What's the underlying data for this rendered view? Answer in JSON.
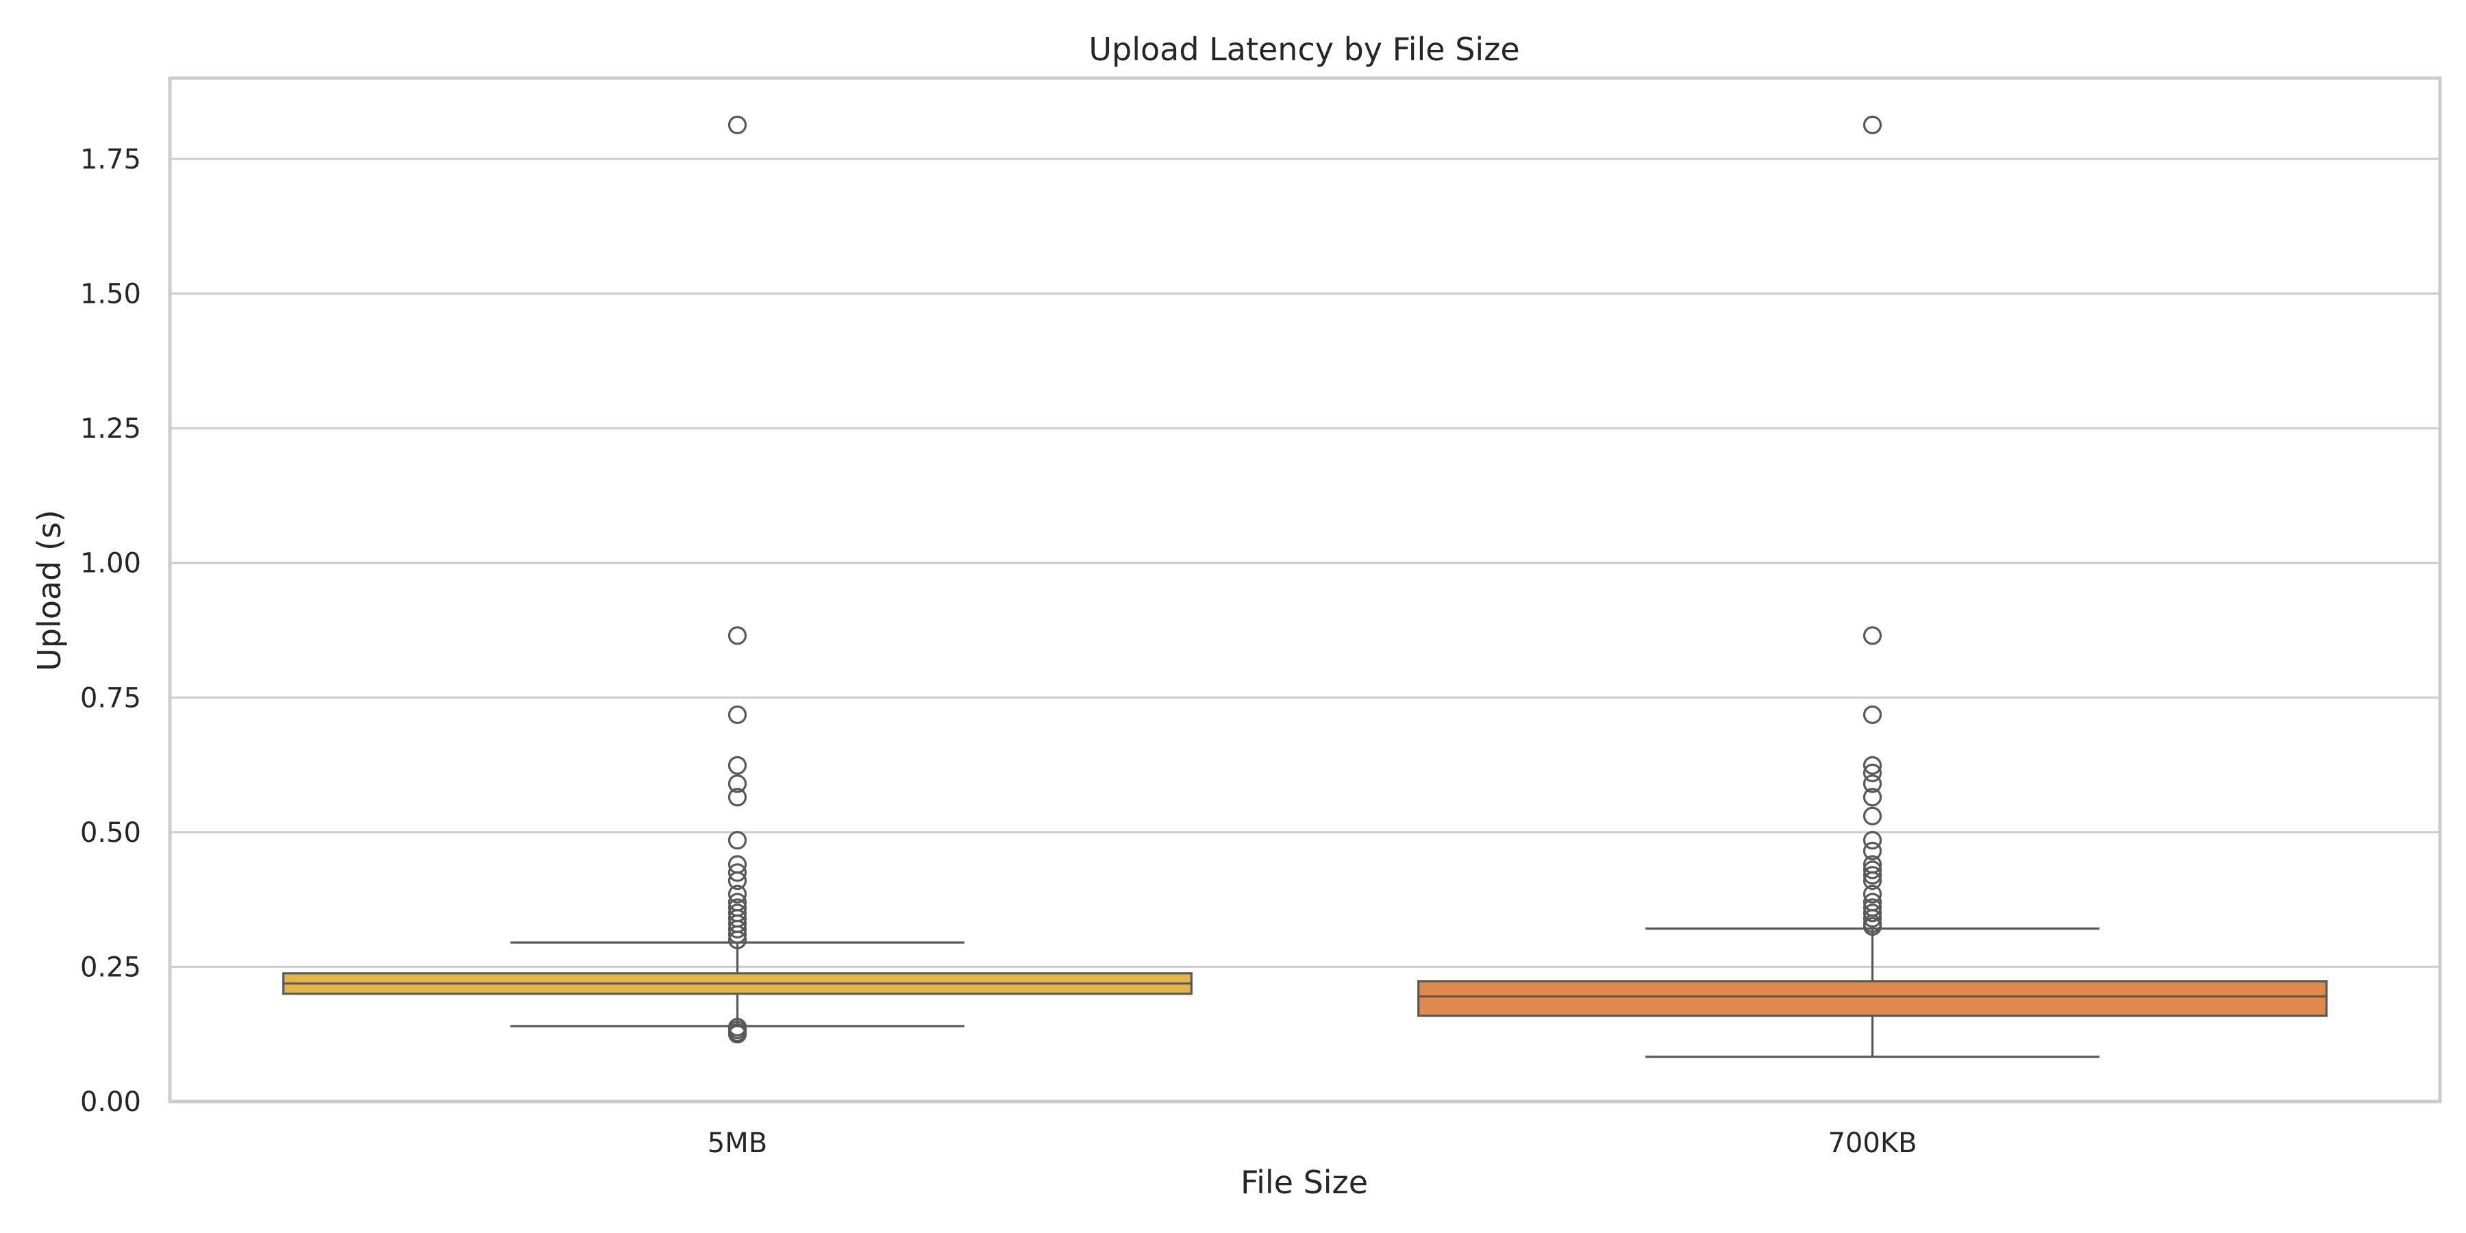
{
  "chart_data": {
    "type": "box",
    "title": "Upload Latency by File Size",
    "xlabel": "File Size",
    "ylabel": "Upload (s)",
    "ylim": [
      0,
      1.9
    ],
    "y_ticks": [
      0.0,
      0.25,
      0.5,
      0.75,
      1.0,
      1.25,
      1.5,
      1.75
    ],
    "y_tick_labels": [
      "0.00",
      "0.25",
      "0.50",
      "0.75",
      "1.00",
      "1.25",
      "1.50",
      "1.75"
    ],
    "grid": true,
    "legend": "none",
    "categories": [
      "5MB",
      "700KB"
    ],
    "boxes": [
      {
        "category": "5MB",
        "color": "#e6b54a",
        "whisker_low": 0.14,
        "q1": 0.2,
        "median": 0.219,
        "q3": 0.238,
        "whisker_high": 0.295,
        "outliers": [
          1.813,
          0.865,
          0.718,
          0.624,
          0.59,
          0.565,
          0.485,
          0.44,
          0.425,
          0.41,
          0.385,
          0.37,
          0.36,
          0.35,
          0.34,
          0.33,
          0.32,
          0.31,
          0.3,
          0.138,
          0.133,
          0.128,
          0.125
        ]
      },
      {
        "category": "700KB",
        "color": "#dd8a4c",
        "whisker_low": 0.083,
        "q1": 0.159,
        "median": 0.195,
        "q3": 0.223,
        "whisker_high": 0.321,
        "outliers": [
          1.813,
          0.865,
          0.718,
          0.624,
          0.61,
          0.59,
          0.565,
          0.53,
          0.485,
          0.465,
          0.44,
          0.43,
          0.42,
          0.41,
          0.385,
          0.37,
          0.36,
          0.35,
          0.34,
          0.33,
          0.325
        ]
      }
    ]
  }
}
